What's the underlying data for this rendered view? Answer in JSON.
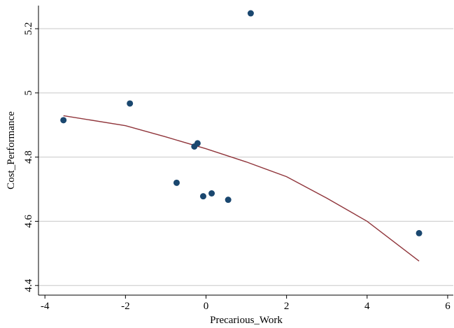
{
  "chart_data": {
    "type": "scatter",
    "x_label": "Precarious_Work",
    "y_label": "Cost_Performance",
    "xlim": [
      -4.16,
      6.14
    ],
    "ylim": [
      4.37,
      5.272
    ],
    "xticks": [
      -4,
      -2,
      0,
      2,
      4,
      6
    ],
    "yticks": [
      4.4,
      4.6,
      4.8,
      5,
      5.2
    ],
    "grid": true,
    "series": [
      {
        "type": "scatter",
        "color": "#1a476f",
        "x": [
          -3.54,
          -1.89,
          1.11,
          -0.21,
          -0.29,
          -0.73,
          -0.07,
          0.14,
          0.55,
          5.29
        ],
        "values": [
          4.915,
          4.967,
          5.248,
          4.843,
          4.833,
          4.72,
          4.678,
          4.687,
          4.667,
          4.563
        ]
      },
      {
        "type": "line",
        "color": "#90353b",
        "x": [
          -3.54,
          -2,
          -1,
          0,
          1,
          2,
          3,
          4,
          5.29
        ],
        "values": [
          4.929,
          4.898,
          4.863,
          4.826,
          4.785,
          4.739,
          4.672,
          4.6,
          4.476
        ]
      }
    ]
  }
}
